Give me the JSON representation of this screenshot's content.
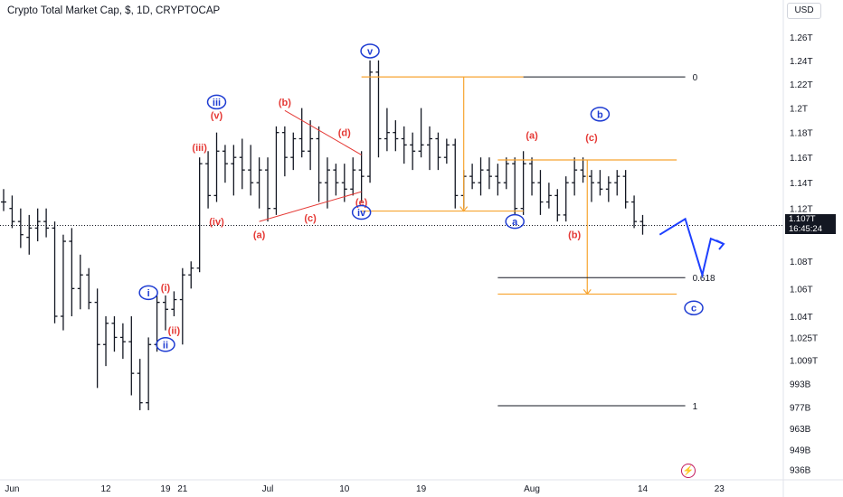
{
  "header": {
    "title": "Crypto Total Market Cap, $, 1D, CRYPTOCAP"
  },
  "currency_button": {
    "label": "USD"
  },
  "last_price": {
    "value": "1.107T",
    "countdown": "16:45:24"
  },
  "alert_icon": {
    "name": "flash-icon",
    "glyph": "⚡"
  },
  "colors": {
    "bars": "#131722",
    "red": "#e53935",
    "blue": "#1e3cd2",
    "orange": "#f7a430",
    "fib": "#131722",
    "projection": "#1e40ff"
  },
  "chart_data": {
    "type": "ohlc",
    "title": "Crypto Total Market Cap, $, 1D, CRYPTOCAP",
    "y_axis_scale": "log",
    "ylim": [
      930000000000.0,
      1275000000000.0
    ],
    "y_ticks": [
      {
        "label": "1.26T",
        "v": 1260000000000.0
      },
      {
        "label": "1.24T",
        "v": 1240000000000.0
      },
      {
        "label": "1.22T",
        "v": 1220000000000.0
      },
      {
        "label": "1.2T",
        "v": 1200000000000.0
      },
      {
        "label": "1.18T",
        "v": 1180000000000.0
      },
      {
        "label": "1.16T",
        "v": 1160000000000.0
      },
      {
        "label": "1.14T",
        "v": 1140000000000.0
      },
      {
        "label": "1.12T",
        "v": 1120000000000.0
      },
      {
        "label": "1.08T",
        "v": 1080000000000.0
      },
      {
        "label": "1.06T",
        "v": 1060000000000.0
      },
      {
        "label": "1.04T",
        "v": 1040000000000.0
      },
      {
        "label": "1.025T",
        "v": 1025000000000.0
      },
      {
        "label": "1.009T",
        "v": 1009000000000.0
      },
      {
        "label": "993B",
        "v": 993000000000.0
      },
      {
        "label": "977B",
        "v": 977000000000.0
      },
      {
        "label": "963B",
        "v": 963000000000.0
      },
      {
        "label": "949B",
        "v": 949000000000.0
      },
      {
        "label": "936B",
        "v": 936000000000.0
      }
    ],
    "x_ticks": [
      {
        "label": "Jun",
        "i": 1
      },
      {
        "label": "12",
        "i": 12
      },
      {
        "label": "19",
        "i": 19
      },
      {
        "label": "21",
        "i": 21
      },
      {
        "label": "Jul",
        "i": 31
      },
      {
        "label": "10",
        "i": 40
      },
      {
        "label": "19",
        "i": 49
      },
      {
        "label": "Aug",
        "i": 62
      },
      {
        "label": "14",
        "i": 75
      },
      {
        "label": "23",
        "i": 84
      }
    ],
    "last_price": 1107000000000.0,
    "bars": [
      [
        1.125,
        1.135,
        1.118,
        1.125
      ],
      [
        1.12,
        1.13,
        1.105,
        1.11
      ],
      [
        1.11,
        1.12,
        1.09,
        1.1
      ],
      [
        1.098,
        1.115,
        1.085,
        1.105
      ],
      [
        1.105,
        1.12,
        1.095,
        1.11
      ],
      [
        1.11,
        1.12,
        1.098,
        1.105
      ],
      [
        1.105,
        1.11,
        1.035,
        1.04
      ],
      [
        1.04,
        1.1,
        1.03,
        1.095
      ],
      [
        1.095,
        1.105,
        1.04,
        1.06
      ],
      [
        1.06,
        1.085,
        1.045,
        1.07
      ],
      [
        1.07,
        1.075,
        1.045,
        1.05
      ],
      [
        1.05,
        1.06,
        0.99,
        1.02
      ],
      [
        1.02,
        1.04,
        1.005,
        1.035
      ],
      [
        1.035,
        1.04,
        1.015,
        1.025
      ],
      [
        1.025,
        1.035,
        1.01,
        1.022
      ],
      [
        1.022,
        1.04,
        0.985,
        1.0
      ],
      [
        1.0,
        1.01,
        0.975,
        0.98
      ],
      [
        0.98,
        1.025,
        0.975,
        1.02
      ],
      [
        1.02,
        1.055,
        1.015,
        1.05
      ],
      [
        1.05,
        1.055,
        1.03,
        1.045
      ],
      [
        1.045,
        1.058,
        1.04,
        1.052
      ],
      [
        1.052,
        1.075,
        1.02,
        1.07
      ],
      [
        1.07,
        1.08,
        1.06,
        1.075
      ],
      [
        1.075,
        1.16,
        1.072,
        1.155
      ],
      [
        1.155,
        1.165,
        1.12,
        1.13
      ],
      [
        1.13,
        1.18,
        1.125,
        1.165
      ],
      [
        1.165,
        1.17,
        1.14,
        1.155
      ],
      [
        1.155,
        1.17,
        1.13,
        1.16
      ],
      [
        1.16,
        1.175,
        1.135,
        1.15
      ],
      [
        1.15,
        1.17,
        1.13,
        1.14
      ],
      [
        1.14,
        1.16,
        1.12,
        1.15
      ],
      [
        1.15,
        1.16,
        1.11,
        1.12
      ],
      [
        1.12,
        1.185,
        1.115,
        1.18
      ],
      [
        1.18,
        1.185,
        1.145,
        1.16
      ],
      [
        1.16,
        1.18,
        1.15,
        1.175
      ],
      [
        1.175,
        1.2,
        1.16,
        1.165
      ],
      [
        1.165,
        1.19,
        1.15,
        1.175
      ],
      [
        1.175,
        1.185,
        1.125,
        1.14
      ],
      [
        1.14,
        1.16,
        1.12,
        1.15
      ],
      [
        1.15,
        1.155,
        1.13,
        1.14
      ],
      [
        1.14,
        1.155,
        1.125,
        1.135
      ],
      [
        1.135,
        1.16,
        1.13,
        1.15
      ],
      [
        1.15,
        1.165,
        1.125,
        1.145
      ],
      [
        1.145,
        1.24,
        1.14,
        1.23
      ],
      [
        1.23,
        1.24,
        1.16,
        1.175
      ],
      [
        1.175,
        1.2,
        1.165,
        1.18
      ],
      [
        1.18,
        1.19,
        1.165,
        1.175
      ],
      [
        1.175,
        1.185,
        1.155,
        1.17
      ],
      [
        1.17,
        1.18,
        1.15,
        1.165
      ],
      [
        1.165,
        1.2,
        1.16,
        1.17
      ],
      [
        1.17,
        1.185,
        1.15,
        1.175
      ],
      [
        1.175,
        1.18,
        1.15,
        1.16
      ],
      [
        1.16,
        1.175,
        1.155,
        1.17
      ],
      [
        1.17,
        1.175,
        1.12,
        1.13
      ],
      [
        1.13,
        1.15,
        1.12,
        1.145
      ],
      [
        1.145,
        1.155,
        1.135,
        1.14
      ],
      [
        1.14,
        1.16,
        1.13,
        1.15
      ],
      [
        1.15,
        1.16,
        1.135,
        1.145
      ],
      [
        1.145,
        1.155,
        1.13,
        1.14
      ],
      [
        1.14,
        1.16,
        1.135,
        1.155
      ],
      [
        1.155,
        1.16,
        1.115,
        1.12
      ],
      [
        1.12,
        1.165,
        1.115,
        1.155
      ],
      [
        1.155,
        1.16,
        1.13,
        1.14
      ],
      [
        1.14,
        1.15,
        1.115,
        1.125
      ],
      [
        1.125,
        1.14,
        1.12,
        1.13
      ],
      [
        1.13,
        1.135,
        1.11,
        1.115
      ],
      [
        1.115,
        1.145,
        1.11,
        1.14
      ],
      [
        1.14,
        1.16,
        1.13,
        1.15
      ],
      [
        1.15,
        1.16,
        1.14,
        1.145
      ],
      [
        1.145,
        1.15,
        1.125,
        1.14
      ],
      [
        1.14,
        1.15,
        1.13,
        1.135
      ],
      [
        1.135,
        1.145,
        1.125,
        1.14
      ],
      [
        1.14,
        1.15,
        1.13,
        1.145
      ],
      [
        1.145,
        1.15,
        1.12,
        1.125
      ],
      [
        1.125,
        1.13,
        1.105,
        1.11
      ],
      [
        1.11,
        1.115,
        1.1,
        1.107
      ]
    ],
    "wave_labels": [
      {
        "text": "v",
        "circled": true,
        "color": "blue",
        "i": 43,
        "v": 1248000000000.0
      },
      {
        "text": "iii",
        "circled": true,
        "color": "blue",
        "i": 25,
        "v": 1205000000000.0
      },
      {
        "text": "(v)",
        "circled": false,
        "color": "red",
        "i": 25,
        "v": 1194000000000.0
      },
      {
        "text": "(iii)",
        "circled": false,
        "color": "red",
        "i": 23,
        "v": 1168000000000.0
      },
      {
        "text": "(iv)",
        "circled": false,
        "color": "red",
        "i": 25,
        "v": 1110000000000.0
      },
      {
        "text": "(b)",
        "circled": false,
        "color": "red",
        "i": 33,
        "v": 1205000000000.0
      },
      {
        "text": "(d)",
        "circled": false,
        "color": "red",
        "i": 40,
        "v": 1180000000000.0
      },
      {
        "text": "(e)",
        "circled": false,
        "color": "red",
        "i": 42,
        "v": 1125000000000.0
      },
      {
        "text": "iv",
        "circled": true,
        "color": "blue",
        "i": 42,
        "v": 1117000000000.0
      },
      {
        "text": "(c)",
        "circled": false,
        "color": "red",
        "i": 36,
        "v": 1113000000000.0
      },
      {
        "text": "(a)",
        "circled": false,
        "color": "red",
        "i": 30,
        "v": 1100000000000.0
      },
      {
        "text": "i",
        "circled": true,
        "color": "blue",
        "i": 17,
        "v": 1057000000000.0
      },
      {
        "text": "(i)",
        "circled": false,
        "color": "red",
        "i": 19,
        "v": 1061000000000.0
      },
      {
        "text": "(ii)",
        "circled": false,
        "color": "red",
        "i": 20,
        "v": 1030000000000.0
      },
      {
        "text": "ii",
        "circled": true,
        "color": "blue",
        "i": 19,
        "v": 1020000000000.0
      },
      {
        "text": "(a)",
        "circled": false,
        "color": "red",
        "i": 62,
        "v": 1178000000000.0
      },
      {
        "text": "(c)",
        "circled": false,
        "color": "red",
        "i": 69,
        "v": 1176000000000.0
      },
      {
        "text": "b",
        "circled": true,
        "color": "blue",
        "i": 70,
        "v": 1195000000000.0
      },
      {
        "text": "a",
        "circled": true,
        "color": "blue",
        "i": 60,
        "v": 1110000000000.0
      },
      {
        "text": "(b)",
        "circled": false,
        "color": "red",
        "i": 67,
        "v": 1100000000000.0
      },
      {
        "text": "c",
        "circled": true,
        "color": "blue",
        "i": 81,
        "v": 1046000000000.0
      }
    ],
    "fib_levels": [
      {
        "label": "0",
        "v": 1226000000000.0
      },
      {
        "label": "0.618",
        "v": 1068000000000.0
      },
      {
        "label": "1",
        "v": 978000000000.0
      }
    ],
    "projection_path": [
      {
        "i": 77,
        "v": 1100000000000.0
      },
      {
        "i": 80,
        "v": 1112000000000.0
      },
      {
        "i": 82,
        "v": 1070000000000.0
      },
      {
        "i": 83,
        "v": 1097000000000.0
      },
      {
        "i": 84.5,
        "v": 1093000000000.0
      }
    ]
  }
}
